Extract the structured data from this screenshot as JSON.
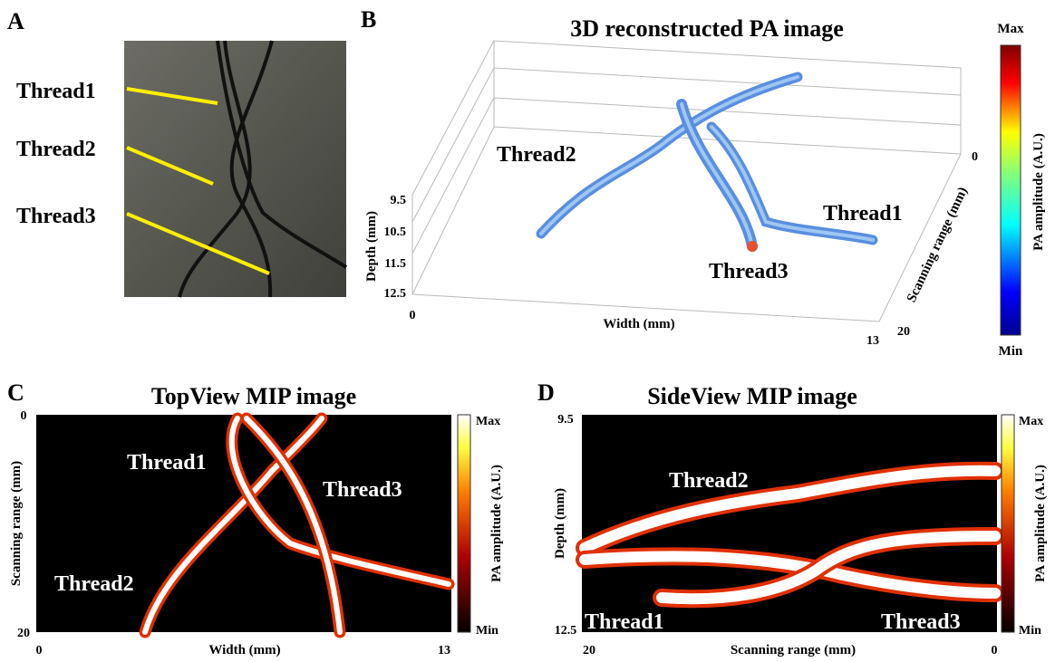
{
  "panel_a": {
    "letter": "A",
    "labels": [
      "Thread1",
      "Thread2",
      "Thread3"
    ]
  },
  "panel_b": {
    "letter": "B",
    "title": "3D reconstructed PA image",
    "thread_labels": [
      "Thread2",
      "Thread1",
      "Thread3"
    ],
    "depth_label": "Depth (mm)",
    "depth_ticks": [
      9.5,
      10.5,
      11.5,
      12.5
    ],
    "width_label": "Width (mm)",
    "width_ticks": [
      0,
      13
    ],
    "scan_label": "Scanning range (mm)",
    "scan_ticks": [
      0,
      20
    ],
    "colorbar": {
      "max": "Max",
      "min": "Min",
      "label": "PA amplitude (A.U.)"
    }
  },
  "panel_c": {
    "letter": "C",
    "title": "TopView MIP image",
    "thread_labels": [
      "Thread1",
      "Thread3",
      "Thread2"
    ],
    "y_label": "Scanning range (mm)",
    "y_ticks": [
      0,
      20
    ],
    "x_label": "Width (mm)",
    "x_ticks": [
      0,
      13
    ],
    "colorbar": {
      "max": "Max",
      "min": "Min",
      "label": "PA amplitude (A.U.)"
    }
  },
  "panel_d": {
    "letter": "D",
    "title": "SideView MIP image",
    "thread_labels": [
      "Thread2",
      "Thread1",
      "Thread3"
    ],
    "y_label": "Depth (mm)",
    "y_ticks": [
      9.5,
      12.5
    ],
    "x_label": "Scanning range (mm)",
    "x_ticks": [
      20,
      0
    ],
    "colorbar": {
      "max": "Max",
      "min": "Min",
      "label": "PA amplitude (A.U.)"
    }
  }
}
